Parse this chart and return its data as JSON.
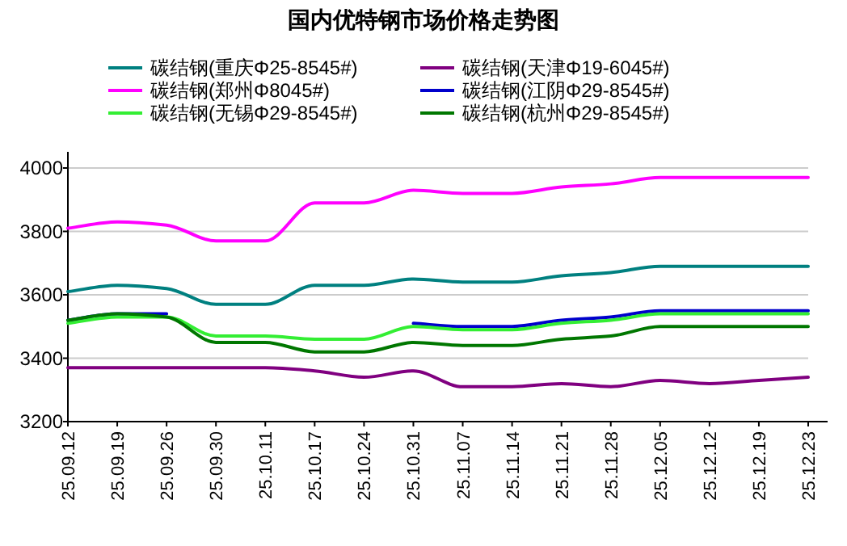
{
  "chart_data": {
    "type": "line",
    "title": "国内优特钢市场价格走势图",
    "categories": [
      "25.09.12",
      "25.09.19",
      "25.09.26",
      "25.09.30",
      "25.10.11",
      "25.10.17",
      "25.10.24",
      "25.10.31",
      "25.11.07",
      "25.11.14",
      "25.11.21",
      "25.11.28",
      "25.12.05",
      "25.12.12",
      "25.12.19",
      "25.12.23"
    ],
    "series": [
      {
        "name": "碳结钢(重庆Φ25-8545#)",
        "color": "#008080",
        "values": [
          3610,
          3630,
          3620,
          3570,
          3570,
          3630,
          3630,
          3650,
          3640,
          3640,
          3660,
          3670,
          3690,
          3690,
          3690,
          3690
        ]
      },
      {
        "name": "碳结钢(天津Φ19-6045#)",
        "color": "#800080",
        "values": [
          3370,
          3370,
          3370,
          3370,
          3370,
          3360,
          3340,
          3360,
          3310,
          3310,
          3320,
          3310,
          3330,
          3320,
          3330,
          3340
        ]
      },
      {
        "name": "碳结钢(郑州Φ8045#)",
        "color": "#ff00ff",
        "values": [
          3810,
          3830,
          3820,
          3770,
          3770,
          3890,
          3890,
          3930,
          3920,
          3920,
          3940,
          3950,
          3970,
          3970,
          3970,
          3970
        ]
      },
      {
        "name": "碳结钢(江阴Φ29-8545#)",
        "color": "#0000cc",
        "values": [
          3520,
          3540,
          3540,
          null,
          null,
          null,
          null,
          3510,
          3500,
          3500,
          3520,
          3530,
          3550,
          3550,
          3550,
          3550
        ]
      },
      {
        "name": "碳结钢(无锡Φ29-8545#)",
        "color": "#33ee33",
        "values": [
          3510,
          3530,
          3530,
          3470,
          3470,
          3460,
          3460,
          3500,
          3490,
          3490,
          3510,
          3520,
          3540,
          3540,
          3540,
          3540
        ]
      },
      {
        "name": "碳结钢(杭州Φ29-8545#)",
        "color": "#007700",
        "values": [
          3520,
          3540,
          3530,
          3450,
          3450,
          3420,
          3420,
          3450,
          3440,
          3440,
          3460,
          3470,
          3500,
          3500,
          3500,
          3500
        ]
      }
    ],
    "ylim": [
      3200,
      4000
    ],
    "yticks": [
      3200,
      3400,
      3600,
      3800,
      4000
    ],
    "grid": "y",
    "legend": "top",
    "marker": "none",
    "line_style": "solid"
  }
}
